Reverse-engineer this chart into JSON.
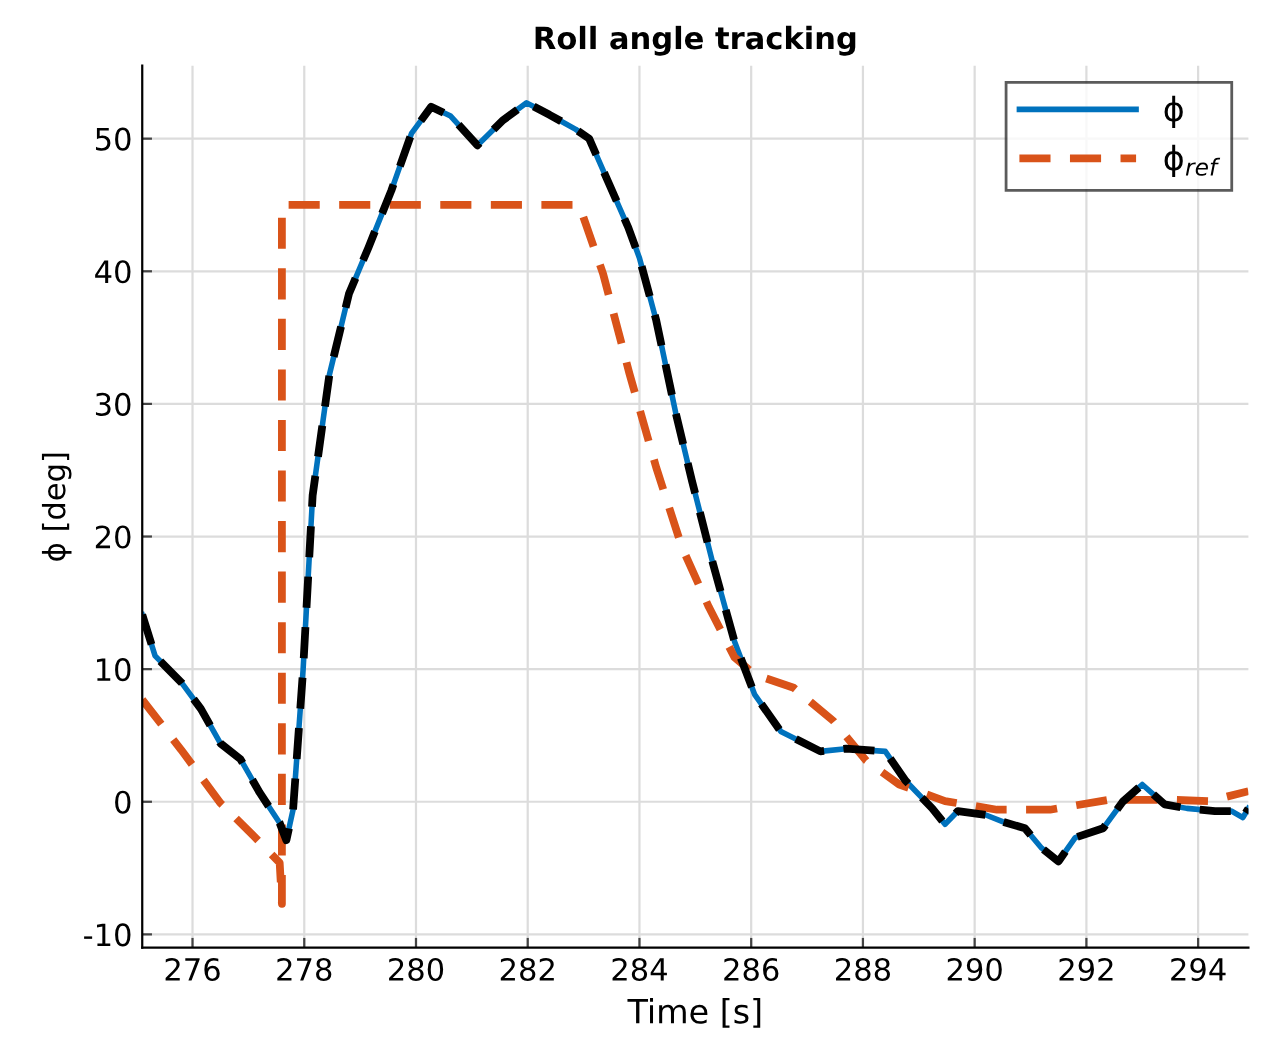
{
  "chart_data": {
    "type": "line",
    "title": "Roll angle tracking",
    "xlabel": "Time [s]",
    "ylabel": "ϕ [deg]",
    "xlim": [
      275.1,
      294.9
    ],
    "ylim": [
      -11,
      55.5
    ],
    "xticks": [
      276,
      278,
      280,
      282,
      284,
      286,
      288,
      290,
      292,
      294
    ],
    "yticks": [
      -10,
      0,
      10,
      20,
      30,
      40,
      50
    ],
    "grid": true,
    "legend": "top right",
    "series": [
      {
        "name": "ϕ",
        "color": "#0072bd",
        "line_style": "solid",
        "x": [
          275.1,
          275.33,
          275.8,
          276.15,
          276.5,
          276.86,
          277.2,
          277.56,
          277.68,
          277.8,
          277.98,
          278.15,
          278.45,
          278.8,
          279.15,
          279.56,
          279.92,
          280.27,
          280.62,
          281.1,
          281.56,
          281.98,
          282.39,
          282.86,
          283.1,
          283.8,
          284.0,
          284.3,
          284.65,
          284.94,
          285.3,
          285.7,
          286.06,
          286.53,
          287.24,
          287.7,
          288.4,
          288.76,
          289.24,
          289.47,
          289.7,
          290.2,
          290.5,
          290.9,
          291.2,
          291.5,
          291.8,
          292.3,
          292.65,
          293.0,
          293.4,
          293.8,
          294.3,
          294.6,
          294.8,
          294.9
        ],
        "values": [
          14.1,
          11.0,
          9.0,
          7.0,
          4.4,
          3.2,
          0.7,
          -1.6,
          -2.9,
          -0.6,
          10.0,
          23.1,
          32.2,
          38.3,
          41.8,
          46.1,
          50.4,
          52.4,
          51.7,
          49.5,
          51.4,
          52.7,
          51.8,
          50.7,
          50.0,
          43.3,
          41.0,
          36.3,
          29.3,
          24.2,
          18.2,
          12.1,
          8.1,
          5.3,
          3.8,
          4.0,
          3.8,
          1.6,
          -0.5,
          -1.7,
          -0.7,
          -1.0,
          -1.5,
          -2.0,
          -3.5,
          -4.5,
          -2.7,
          -2.0,
          0.0,
          1.3,
          -0.2,
          -0.5,
          -0.7,
          -0.7,
          -1.2,
          -0.5
        ]
      },
      {
        "name": "ϕ$_{ref}$",
        "color": "#d95319",
        "line_style": "dashed",
        "x": [
          275.1,
          275.8,
          276.5,
          277.1,
          277.56,
          277.6,
          277.6,
          282.92,
          283.35,
          283.82,
          284.3,
          284.76,
          285.24,
          285.7,
          286.06,
          286.76,
          287.47,
          288.06,
          288.65,
          289.47,
          290.4,
          291.35,
          292.4,
          293.5,
          294.2,
          294.9
        ],
        "values": [
          7.7,
          3.9,
          -0.1,
          -2.6,
          -4.6,
          -7.7,
          45.0,
          45.0,
          39.8,
          32.3,
          25.2,
          19.2,
          14.7,
          10.9,
          9.6,
          8.6,
          6.1,
          3.1,
          1.3,
          0.05,
          -0.6,
          -0.6,
          0.15,
          0.15,
          0.05,
          0.8
        ]
      },
      {
        "color": "#000000",
        "line_style": "dashed",
        "x": [
          275.1,
          275.33,
          275.8,
          276.15,
          276.5,
          276.86,
          277.2,
          277.56,
          277.68,
          277.8,
          277.98,
          278.15,
          278.45,
          278.8,
          279.15,
          279.56,
          279.92,
          280.27,
          280.62,
          281.1,
          281.56,
          281.98,
          282.39,
          282.86,
          283.1,
          283.8,
          284.0,
          284.3,
          284.65,
          284.94,
          285.3,
          285.7,
          286.06,
          286.53,
          287.24,
          287.7,
          288.4,
          288.76,
          289.24,
          289.47,
          289.7,
          290.2,
          290.5,
          290.9,
          291.2,
          291.5,
          291.8,
          292.3,
          292.65,
          293.0,
          293.4,
          293.8,
          294.3,
          294.6,
          294.8,
          294.9
        ],
        "values": [
          14.1,
          11.0,
          9.0,
          7.0,
          4.4,
          3.2,
          0.7,
          -1.6,
          -2.9,
          -0.6,
          10.0,
          23.1,
          32.2,
          38.3,
          41.8,
          46.1,
          50.4,
          52.4,
          51.7,
          49.5,
          51.4,
          52.7,
          51.8,
          50.7,
          50.0,
          43.3,
          41.0,
          36.3,
          29.3,
          24.2,
          18.2,
          12.1,
          8.1,
          5.3,
          3.8,
          4.0,
          3.8,
          1.6,
          -0.5,
          -1.7,
          -0.7,
          -1.0,
          -1.5,
          -2.0,
          -3.5,
          -4.5,
          -2.7,
          -2.0,
          0.0,
          1.3,
          -0.2,
          -0.5,
          -0.7,
          -0.7,
          -1.2,
          -0.5
        ]
      }
    ]
  }
}
